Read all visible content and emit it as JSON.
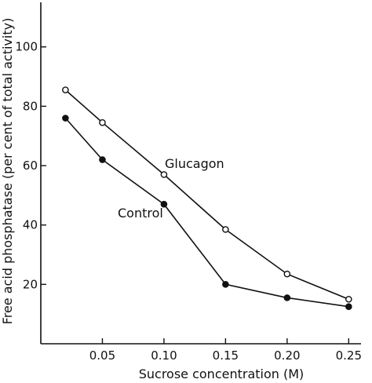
{
  "chart_data": {
    "type": "line",
    "title": "",
    "xlabel": "Sucrose concentration (M)",
    "ylabel": "Free acid phosphatase (per cent of total activity)",
    "xlim": [
      0.0,
      0.26
    ],
    "ylim": [
      0,
      115
    ],
    "x_ticks": [
      0.05,
      0.1,
      0.15,
      0.2,
      0.25
    ],
    "x_tick_labels": [
      "0.05",
      "0.10",
      "0.15",
      "0.20",
      "0.25"
    ],
    "y_ticks": [
      20,
      40,
      60,
      80,
      100
    ],
    "y_tick_labels": [
      "20",
      "40",
      "60",
      "80",
      "100"
    ],
    "grid": false,
    "legend": "none",
    "series": [
      {
        "name": "Glucagon",
        "marker": "open-circle",
        "color": "#111111",
        "x": [
          0.02,
          0.05,
          0.1,
          0.15,
          0.2,
          0.25
        ],
        "y": [
          85.5,
          74.5,
          57,
          38.5,
          23.5,
          15
        ]
      },
      {
        "name": "Control",
        "marker": "filled-circle",
        "color": "#111111",
        "x": [
          0.02,
          0.05,
          0.1,
          0.15,
          0.2,
          0.25
        ],
        "y": [
          76,
          62,
          47,
          20,
          15.5,
          12.5
        ]
      }
    ]
  }
}
